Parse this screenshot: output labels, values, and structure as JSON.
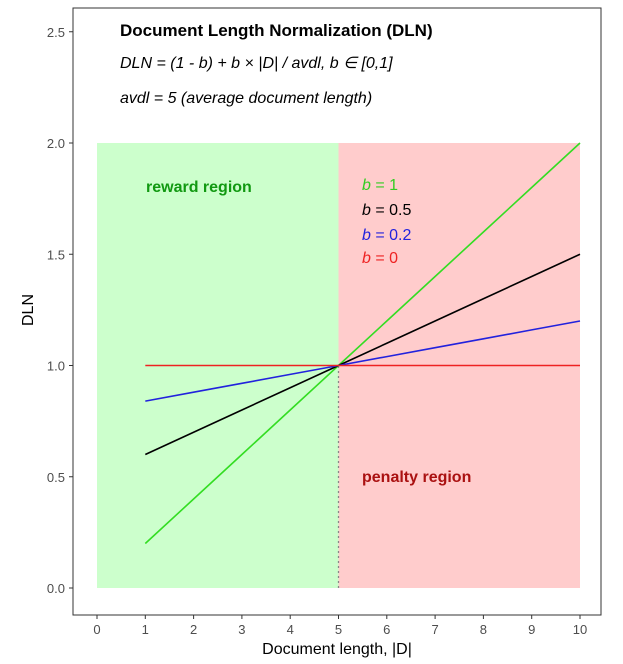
{
  "chart_data": {
    "type": "line",
    "x": [
      1,
      2,
      3,
      4,
      5,
      6,
      7,
      8,
      9,
      10
    ],
    "series": [
      {
        "name": "b = 1",
        "color": "#33dd22",
        "values": [
          0.2,
          0.4,
          0.6,
          0.8,
          1.0,
          1.2,
          1.4,
          1.6,
          1.8,
          2.0
        ]
      },
      {
        "name": "b = 0.5",
        "color": "#000000",
        "values": [
          0.6,
          0.7,
          0.8,
          0.9,
          1.0,
          1.1,
          1.2,
          1.3,
          1.4,
          1.5
        ]
      },
      {
        "name": "b = 0.2",
        "color": "#2222dd",
        "values": [
          0.84,
          0.88,
          0.92,
          0.96,
          1.0,
          1.04,
          1.08,
          1.12,
          1.16,
          1.2
        ]
      },
      {
        "name": "b = 0",
        "color": "#ee2222",
        "values": [
          1.0,
          1.0,
          1.0,
          1.0,
          1.0,
          1.0,
          1.0,
          1.0,
          1.0,
          1.0
        ]
      }
    ],
    "xlabel": "Document length,  |D|",
    "ylabel": "DLN",
    "xlim": [
      0,
      10
    ],
    "ylim": [
      0,
      2.5
    ],
    "xticks": [
      0,
      1,
      2,
      3,
      4,
      5,
      6,
      7,
      8,
      9,
      10
    ],
    "yticks": [
      0.0,
      0.5,
      1.0,
      1.5,
      2.0,
      2.5
    ],
    "ytick_labels": [
      "0.0",
      "0.5",
      "1.0",
      "1.5",
      "2.0",
      "2.5"
    ],
    "regions": [
      {
        "label": "reward region",
        "x_range": [
          0,
          5
        ],
        "y_range": [
          0,
          2
        ],
        "fill": "#ccffcc",
        "label_color": "#119911"
      },
      {
        "label": "penalty region",
        "x_range": [
          5,
          10
        ],
        "y_range": [
          0,
          2
        ],
        "fill": "#ffcccc",
        "label_color": "#aa1111"
      }
    ],
    "vline": {
      "x": 5,
      "y_range": [
        0,
        1
      ],
      "style": "dotted",
      "color": "#888888"
    },
    "annotations": {
      "title": "Document Length Normalization (DLN)",
      "formula": "DLN = (1 - b)  + b  ×  |D| / avdl,  b  ∈ [0,1]",
      "avdl_note": "avdl = 5 (average document length)"
    },
    "legend_labels": [
      {
        "var": "b",
        "rest": " = 1",
        "color": "#33cc22"
      },
      {
        "var": "b",
        "rest": " = 0.5",
        "color": "#000000"
      },
      {
        "var": "b",
        "rest": " = 0.2",
        "color": "#2222dd"
      },
      {
        "var": "b",
        "rest": " = 0",
        "color": "#ee2222"
      }
    ],
    "grid": false,
    "legend_position": "inside plot, top-center"
  }
}
